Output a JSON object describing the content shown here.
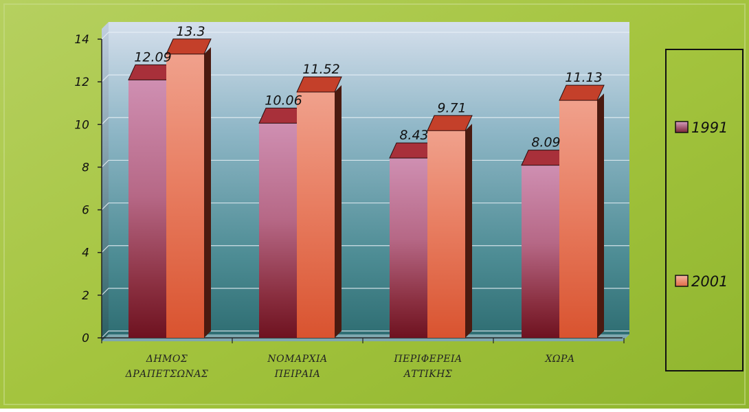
{
  "chart_data": {
    "type": "bar",
    "categories": [
      [
        "ΔΗΜΟΣ",
        "ΔΡΑΠΕΤΣΩΝΑΣ"
      ],
      [
        "ΝΟΜΑΡΧΙΑ",
        "ΠΕΙΡΑΙΑ"
      ],
      [
        "ΠΕΡΙΦΕΡΕΙΑ",
        "ΑΤΤΙΚΗΣ"
      ],
      [
        "ΧΩΡΑ"
      ]
    ],
    "series": [
      {
        "name": "1991",
        "values": [
          12.09,
          10.06,
          8.43,
          8.09
        ],
        "labels": [
          "12.09",
          "10.06",
          "8.43",
          "8.09"
        ]
      },
      {
        "name": "2001",
        "values": [
          13.3,
          11.52,
          9.71,
          11.13
        ],
        "labels": [
          "13.3",
          "11.52",
          "9.71",
          "11.13"
        ]
      }
    ],
    "ylim": [
      0,
      14
    ],
    "yticks": [
      "0",
      "2",
      "4",
      "6",
      "8",
      "10",
      "12",
      "14"
    ],
    "grid": true,
    "legend_position": "right",
    "title": "",
    "xlabel": "",
    "ylabel": "",
    "colors": {
      "background": "#9fc13f",
      "series_1991": "#c9708f",
      "series_2001": "#e8724f"
    }
  }
}
